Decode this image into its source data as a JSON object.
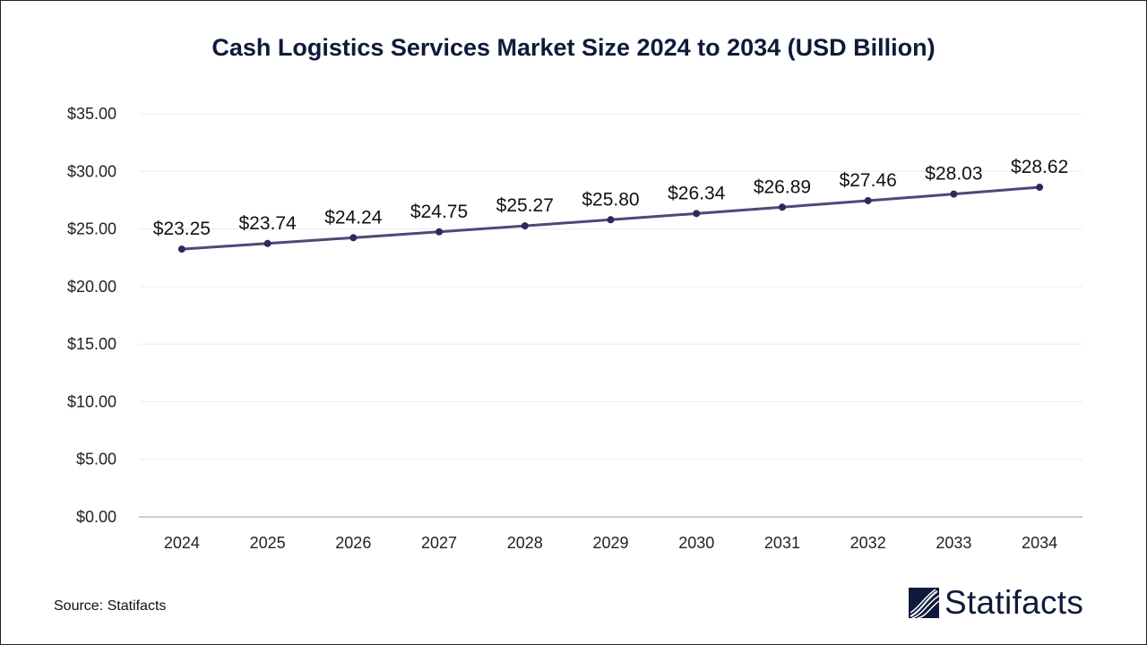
{
  "chart_data": {
    "type": "line",
    "title": "Cash Logistics Services Market Size 2024 to 2034 (USD Billion)",
    "categories": [
      "2024",
      "2025",
      "2026",
      "2027",
      "2028",
      "2029",
      "2030",
      "2031",
      "2032",
      "2033",
      "2034"
    ],
    "values": [
      23.25,
      23.74,
      24.24,
      24.75,
      25.27,
      25.8,
      26.34,
      26.89,
      27.46,
      28.03,
      28.62
    ],
    "data_labels": [
      "$23.25",
      "$23.74",
      "$24.24",
      "$24.75",
      "$25.27",
      "$25.80",
      "$26.34",
      "$26.89",
      "$27.46",
      "$28.03",
      "$28.62"
    ],
    "y_ticks": [
      "$0.00",
      "$5.00",
      "$10.00",
      "$15.00",
      "$20.00",
      "$25.00",
      "$30.00",
      "$35.00"
    ],
    "ylim": [
      0,
      35
    ],
    "grid": true,
    "legend": "none",
    "xlabel": "",
    "ylabel": "",
    "line_color": "#4a4a7a",
    "marker_color": "#2a2a5e"
  },
  "source": "Source: Statifacts",
  "logo": {
    "text": "Statifacts",
    "color": "#0f1a3a"
  }
}
